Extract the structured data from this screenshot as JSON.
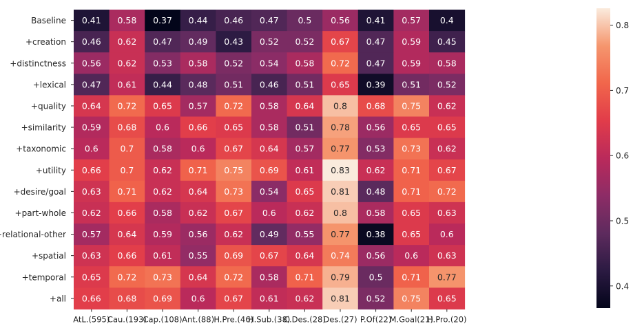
{
  "chart_data": {
    "type": "heatmap",
    "title": "",
    "xlabel": "",
    "ylabel": "",
    "colormap": "rocket",
    "x_categories": [
      "AtL.(595)",
      "Cau.(193)",
      "Cap.(108)",
      "Ant.(88)",
      "H.Pre.(46)",
      "H.Sub.(38)",
      "C.Des.(28)",
      "Des.(27)",
      "P.Of(22)",
      "M.Goal(21)",
      "H.Pro.(20)"
    ],
    "y_categories": [
      "Baseline",
      "+creation",
      "+distinctness",
      "+lexical",
      "+quality",
      "+similarity",
      "+taxonomic",
      "+utility",
      "+desire/goal",
      "+part-whole",
      "+relational-other",
      "+spatial",
      "+temporal",
      "+all"
    ],
    "values": [
      [
        0.41,
        0.58,
        0.37,
        0.44,
        0.46,
        0.47,
        0.5,
        0.56,
        0.41,
        0.57,
        0.4
      ],
      [
        0.46,
        0.62,
        0.47,
        0.49,
        0.43,
        0.52,
        0.52,
        0.67,
        0.47,
        0.59,
        0.45
      ],
      [
        0.56,
        0.62,
        0.53,
        0.58,
        0.52,
        0.54,
        0.58,
        0.72,
        0.47,
        0.59,
        0.58
      ],
      [
        0.47,
        0.61,
        0.44,
        0.48,
        0.51,
        0.46,
        0.51,
        0.65,
        0.39,
        0.51,
        0.52
      ],
      [
        0.64,
        0.72,
        0.65,
        0.57,
        0.72,
        0.58,
        0.64,
        0.8,
        0.68,
        0.75,
        0.62
      ],
      [
        0.59,
        0.68,
        0.6,
        0.66,
        0.65,
        0.58,
        0.51,
        0.78,
        0.56,
        0.65,
        0.65
      ],
      [
        0.6,
        0.7,
        0.58,
        0.6,
        0.67,
        0.64,
        0.57,
        0.77,
        0.53,
        0.73,
        0.62
      ],
      [
        0.66,
        0.7,
        0.62,
        0.71,
        0.75,
        0.69,
        0.61,
        0.83,
        0.62,
        0.71,
        0.67
      ],
      [
        0.63,
        0.71,
        0.62,
        0.64,
        0.73,
        0.54,
        0.65,
        0.81,
        0.48,
        0.71,
        0.72
      ],
      [
        0.62,
        0.66,
        0.58,
        0.62,
        0.67,
        0.6,
        0.62,
        0.8,
        0.58,
        0.65,
        0.63
      ],
      [
        0.57,
        0.64,
        0.59,
        0.56,
        0.62,
        0.49,
        0.55,
        0.77,
        0.38,
        0.65,
        0.6
      ],
      [
        0.63,
        0.66,
        0.61,
        0.55,
        0.69,
        0.67,
        0.64,
        0.74,
        0.56,
        0.6,
        0.63
      ],
      [
        0.65,
        0.72,
        0.73,
        0.64,
        0.72,
        0.58,
        0.71,
        0.79,
        0.5,
        0.71,
        0.77
      ],
      [
        0.66,
        0.68,
        0.69,
        0.6,
        0.67,
        0.61,
        0.62,
        0.81,
        0.52,
        0.75,
        0.65
      ]
    ],
    "vmin": 0.37,
    "vmax": 0.83,
    "colorbar": {
      "ticks": [
        0.4,
        0.5,
        0.6,
        0.7,
        0.8
      ],
      "tick_labels": [
        "0.4",
        "0.5",
        "0.6",
        "0.7",
        "0.8"
      ]
    },
    "annotation_colors": {
      "light": "#ffffff",
      "dark": "#262626"
    }
  }
}
